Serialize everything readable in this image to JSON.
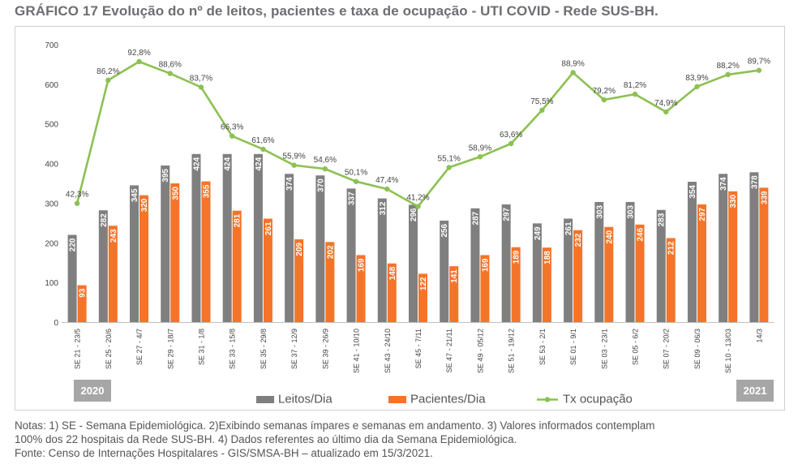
{
  "title": "GRÁFICO 17 Evolução do nº de leitos, pacientes e taxa de ocupação - UTI COVID - Rede SUS-BH.",
  "colors": {
    "leitos": "#7f7f7f",
    "pacientes": "#f4742a",
    "taxa": "#8cc152"
  },
  "year_start": "2020",
  "year_end": "2021",
  "notes": [
    "Notas: 1) SE - Semana Epidemiológica. 2)Exibindo semanas ímpares e semanas em andamento. 3) Valores informados contemplam",
    "100% dos 22 hospitais da Rede SUS-BH. 4) Dados referentes ao último dia da Semana Epidemiológica.",
    "Fonte: Censo de Internações Hospitalares - GIS/SMSA-BH – atualizado em 15/3/2021."
  ],
  "chart_data": {
    "type": "bar",
    "ylim": [
      0,
      700
    ],
    "yticks": [
      "0",
      "100",
      "200",
      "300",
      "400",
      "500",
      "600",
      "700"
    ],
    "grid": false,
    "legend_position": "bottom",
    "categories": [
      "SE 21 - 23/5",
      "SE 25 - 20/6",
      "SE 27 - 4/7",
      "SE 29 - 18/7",
      "SE 31 - 1/8",
      "SE 33 - 15/8",
      "SE 35 - 29/8",
      "SE 37 - 12/9",
      "SE 39 - 26/9",
      "SE 41 - 10/10",
      "SE 43 - 24/10",
      "SE 45 - 7/11",
      "SE 47 - 21/11",
      "SE 49 - 05/12",
      "SE 51 - 19/12",
      "SE 53 - 2/1",
      "SE 01 - 9/1",
      "SE 03 - 23/1",
      "SE 05 - 6/2",
      "SE 07 - 20/2",
      "SE 09 - 06/3",
      "SE 10 - 13/03",
      "14/3"
    ],
    "series": [
      {
        "name": "Leitos/Dia",
        "kind": "bar",
        "values": [
          220,
          282,
          345,
          395,
          424,
          424,
          424,
          374,
          370,
          337,
          312,
          296,
          256,
          287,
          297,
          249,
          261,
          303,
          303,
          283,
          354,
          374,
          378
        ]
      },
      {
        "name": "Pacientes/Dia",
        "kind": "bar",
        "values": [
          93,
          243,
          320,
          350,
          355,
          281,
          261,
          209,
          202,
          169,
          148,
          122,
          141,
          169,
          189,
          188,
          232,
          240,
          246,
          212,
          297,
          330,
          339
        ]
      },
      {
        "name": "Tx ocupação",
        "kind": "line",
        "values": [
          42.3,
          86.2,
          92.8,
          88.6,
          83.7,
          66.3,
          61.6,
          55.9,
          54.6,
          50.1,
          47.4,
          41.2,
          55.1,
          58.9,
          63.6,
          75.5,
          88.9,
          79.2,
          81.2,
          74.9,
          83.9,
          88.2,
          89.7
        ],
        "labels": [
          "42,3%",
          "86,2%",
          "92,8%",
          "88,6%",
          "83,7%",
          "66,3%",
          "61,6%",
          "55,9%",
          "54,6%",
          "50,1%",
          "47,4%",
          "41,2%",
          "55,1%",
          "58,9%",
          "63,6%",
          "75,5%",
          "88,9%",
          "79,2%",
          "81,2%",
          "74,9%",
          "83,9%",
          "88,2%",
          "89,7%"
        ]
      }
    ]
  }
}
